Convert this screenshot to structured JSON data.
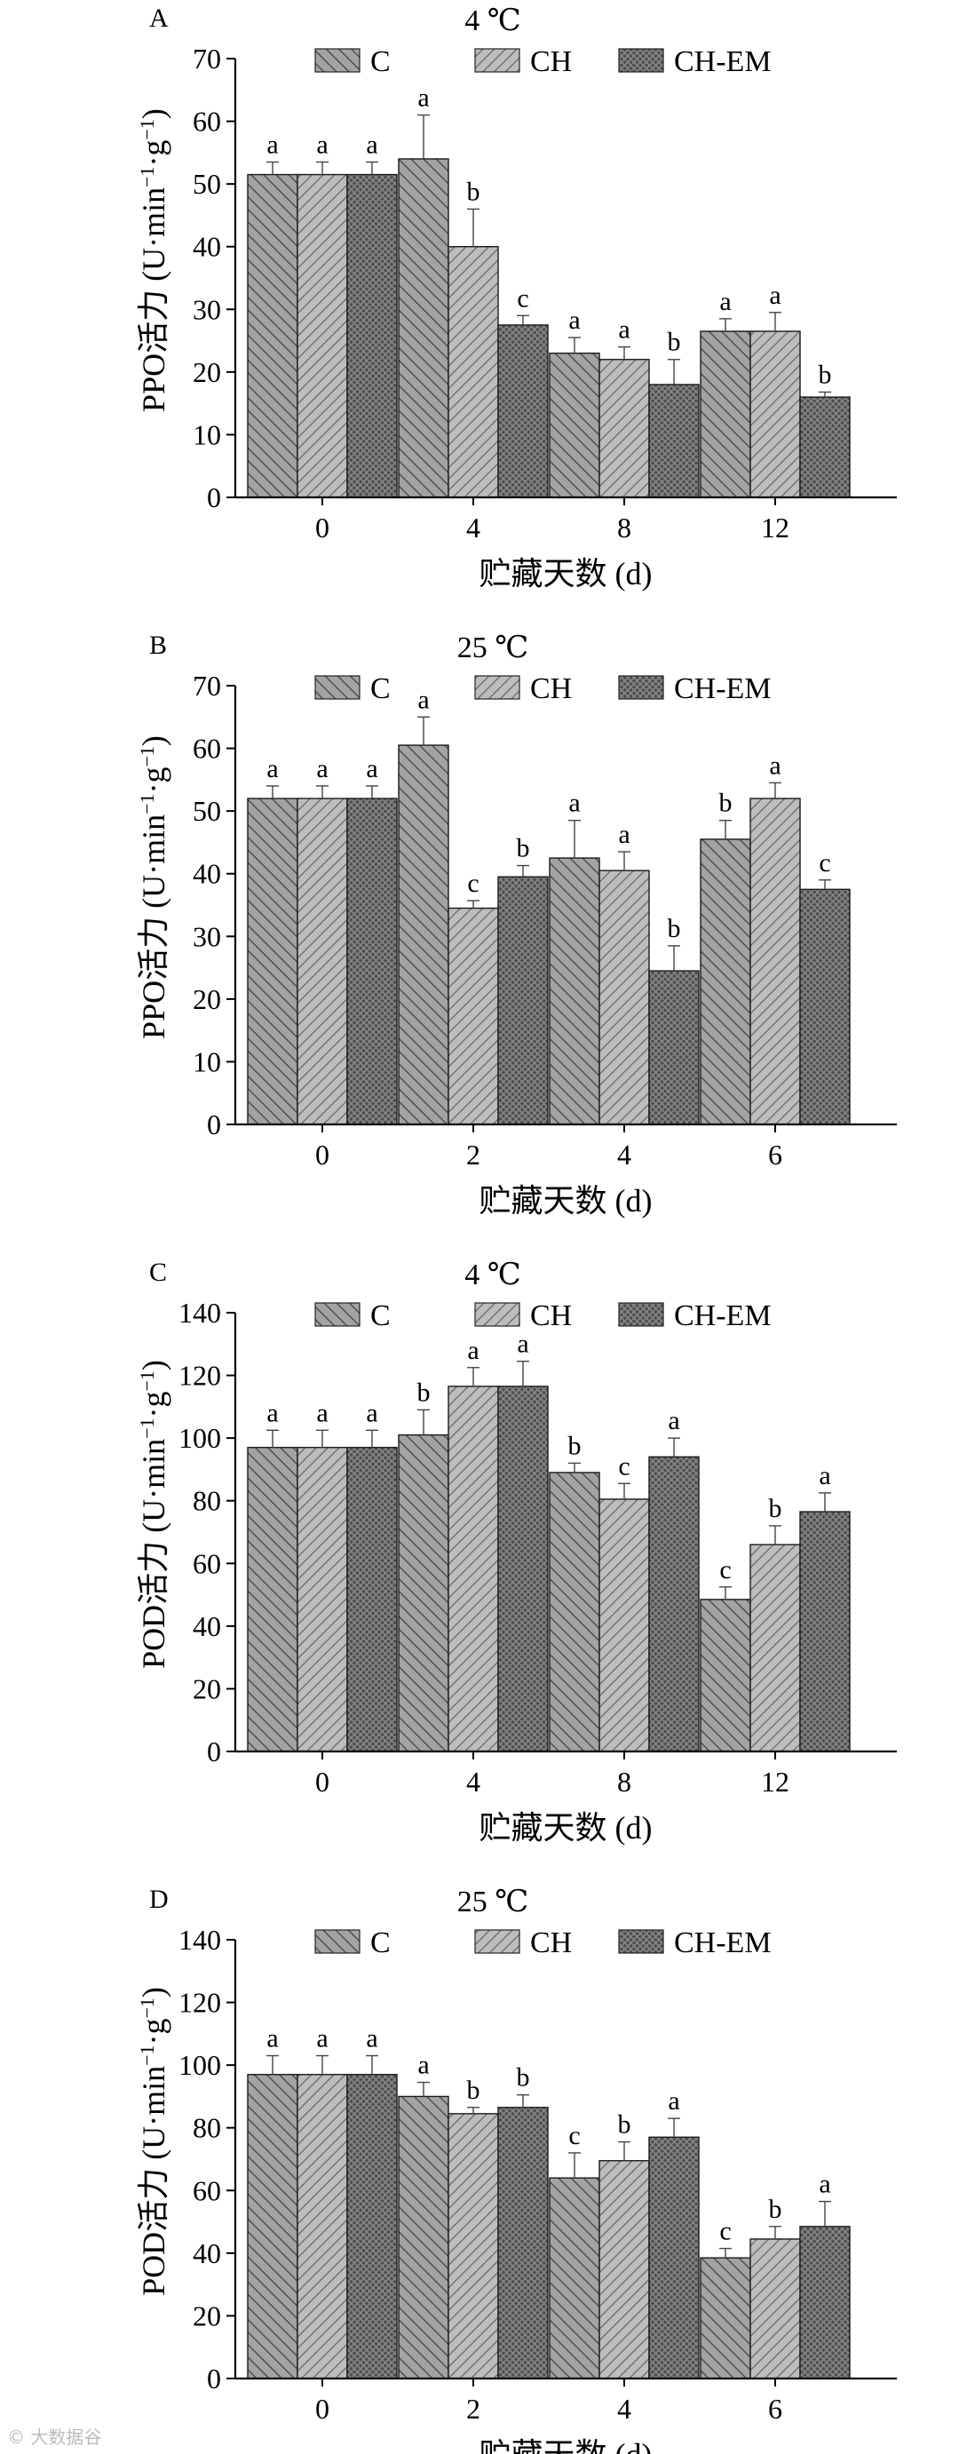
{
  "watermark": "© 大数据谷",
  "legend_labels": [
    "C",
    "CH",
    "CH-EM"
  ],
  "chart_data": [
    {
      "panel": "A",
      "type": "bar",
      "title": "4 ℃",
      "xlabel": "贮藏天数 (d)",
      "ylabel": "PPO活力 (U·min⁻¹·g⁻¹)",
      "categories": [
        "0",
        "4",
        "8",
        "12"
      ],
      "ylim": [
        0,
        70
      ],
      "yticks": [
        0,
        10,
        20,
        30,
        40,
        50,
        60,
        70
      ],
      "series": [
        {
          "name": "C",
          "values": [
            51.5,
            54,
            23,
            26.5
          ],
          "errors": [
            2,
            7,
            2.5,
            2
          ],
          "letters": [
            "a",
            "a",
            "a",
            "a"
          ]
        },
        {
          "name": "CH",
          "values": [
            51.5,
            40,
            22,
            26.5
          ],
          "errors": [
            2,
            6,
            2,
            3
          ],
          "letters": [
            "a",
            "b",
            "a",
            "a"
          ]
        },
        {
          "name": "CH-EM",
          "values": [
            51.5,
            27.5,
            18,
            16
          ],
          "errors": [
            2,
            1.5,
            4,
            0.8
          ],
          "letters": [
            "a",
            "c",
            "b",
            "b"
          ]
        }
      ]
    },
    {
      "panel": "B",
      "type": "bar",
      "title": "25 ℃",
      "xlabel": "贮藏天数 (d)",
      "ylabel": "PPO活力 (U·min⁻¹·g⁻¹)",
      "categories": [
        "0",
        "2",
        "4",
        "6"
      ],
      "ylim": [
        0,
        70
      ],
      "yticks": [
        0,
        10,
        20,
        30,
        40,
        50,
        60,
        70
      ],
      "series": [
        {
          "name": "C",
          "values": [
            52,
            60.5,
            42.5,
            45.5
          ],
          "errors": [
            2,
            4.5,
            6,
            3
          ],
          "letters": [
            "a",
            "a",
            "a",
            "b"
          ]
        },
        {
          "name": "CH",
          "values": [
            52,
            34.5,
            40.5,
            52
          ],
          "errors": [
            2,
            1.2,
            3,
            2.5
          ],
          "letters": [
            "a",
            "c",
            "a",
            "a"
          ]
        },
        {
          "name": "CH-EM",
          "values": [
            52,
            39.5,
            24.5,
            37.5
          ],
          "errors": [
            2,
            1.8,
            4,
            1.5
          ],
          "letters": [
            "a",
            "b",
            "b",
            "c"
          ]
        }
      ]
    },
    {
      "panel": "C",
      "type": "bar",
      "title": "4 ℃",
      "xlabel": "贮藏天数 (d)",
      "ylabel": "POD活力 (U·min⁻¹·g⁻¹)",
      "categories": [
        "0",
        "4",
        "8",
        "12"
      ],
      "ylim": [
        0,
        140
      ],
      "yticks": [
        0,
        20,
        40,
        60,
        80,
        100,
        120,
        140
      ],
      "series": [
        {
          "name": "C",
          "values": [
            97,
            101,
            89,
            48.5
          ],
          "errors": [
            5.5,
            8,
            3,
            4
          ],
          "letters": [
            "a",
            "b",
            "b",
            "c"
          ]
        },
        {
          "name": "CH",
          "values": [
            97,
            116.5,
            80.5,
            66
          ],
          "errors": [
            5.5,
            6,
            5,
            6
          ],
          "letters": [
            "a",
            "a",
            "c",
            "b"
          ]
        },
        {
          "name": "CH-EM",
          "values": [
            97,
            116.5,
            94,
            76.5
          ],
          "errors": [
            5.5,
            8,
            6,
            6
          ],
          "letters": [
            "a",
            "a",
            "a",
            "a"
          ]
        }
      ]
    },
    {
      "panel": "D",
      "type": "bar",
      "title": "25 ℃",
      "xlabel": "贮藏天数 (d)",
      "ylabel": "POD活力 (U·min⁻¹·g⁻¹)",
      "categories": [
        "0",
        "2",
        "4",
        "6"
      ],
      "ylim": [
        0,
        140
      ],
      "yticks": [
        0,
        20,
        40,
        60,
        80,
        100,
        120,
        140
      ],
      "series": [
        {
          "name": "C",
          "values": [
            97,
            90,
            64,
            38.5
          ],
          "errors": [
            6,
            4.5,
            8,
            3
          ],
          "letters": [
            "a",
            "a",
            "c",
            "c"
          ]
        },
        {
          "name": "CH",
          "values": [
            97,
            84.5,
            69.5,
            44.5
          ],
          "errors": [
            6,
            2,
            6,
            4
          ],
          "letters": [
            "a",
            "b",
            "b",
            "b"
          ]
        },
        {
          "name": "CH-EM",
          "values": [
            97,
            86.5,
            77,
            48.5
          ],
          "errors": [
            6,
            4,
            6,
            8
          ],
          "letters": [
            "a",
            "b",
            "a",
            "a"
          ]
        }
      ]
    }
  ]
}
